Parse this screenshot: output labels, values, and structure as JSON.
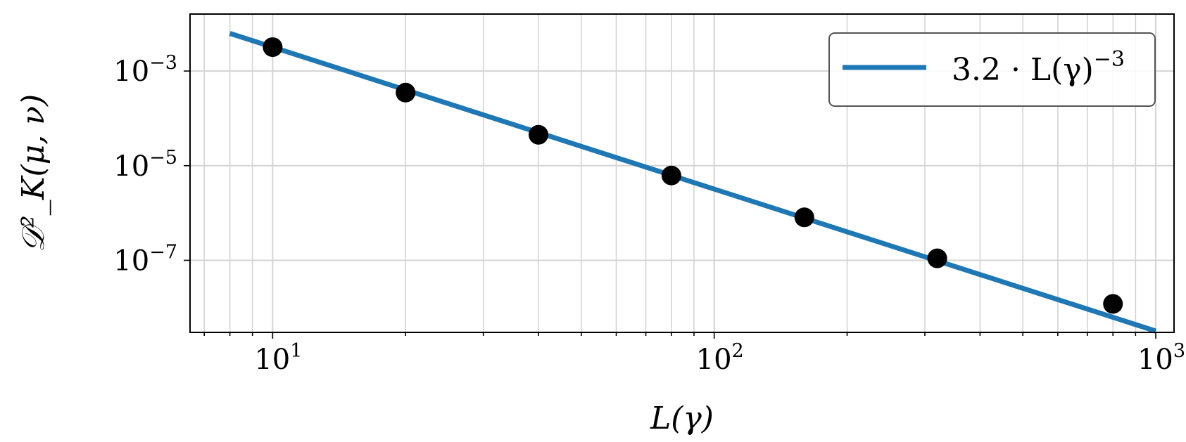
{
  "chart_data": {
    "type": "scatter",
    "xscale": "log",
    "yscale": "log",
    "xlim": [
      6.5,
      1100
    ],
    "ylim": [
      3e-09,
      0.016
    ],
    "grid": true,
    "legend_placement": "top-right",
    "xlabel": "L(γ)",
    "ylabel": "𝒟²_K(μ, ν)",
    "x_ticks": [
      {
        "value": 10,
        "base": "10",
        "exp": "1"
      },
      {
        "value": 100,
        "base": "10",
        "exp": "2"
      },
      {
        "value": 1000,
        "base": "10",
        "exp": "3"
      }
    ],
    "y_ticks": [
      {
        "value": 0.001,
        "base": "10",
        "exp": "−3"
      },
      {
        "value": 1e-05,
        "base": "10",
        "exp": "−5"
      },
      {
        "value": 1e-07,
        "base": "10",
        "exp": "−7"
      }
    ],
    "series": [
      {
        "name": "3.2 · L(γ)⁻³",
        "kind": "line",
        "color": "#1f77b4",
        "x": [
          8,
          1000
        ],
        "y": [
          0.00625,
          3.2e-09
        ]
      },
      {
        "kind": "scatter",
        "color": "#000000",
        "x": [
          10,
          20,
          40,
          80,
          160,
          320,
          800
        ],
        "y": [
          0.0032,
          0.00035,
          4.5e-05,
          6.2e-06,
          8.1e-07,
          1.1e-07,
          1.2e-08
        ]
      }
    ],
    "legend": {
      "label_prefix": "3.2 · L(γ)",
      "label_exp": "−3"
    }
  }
}
